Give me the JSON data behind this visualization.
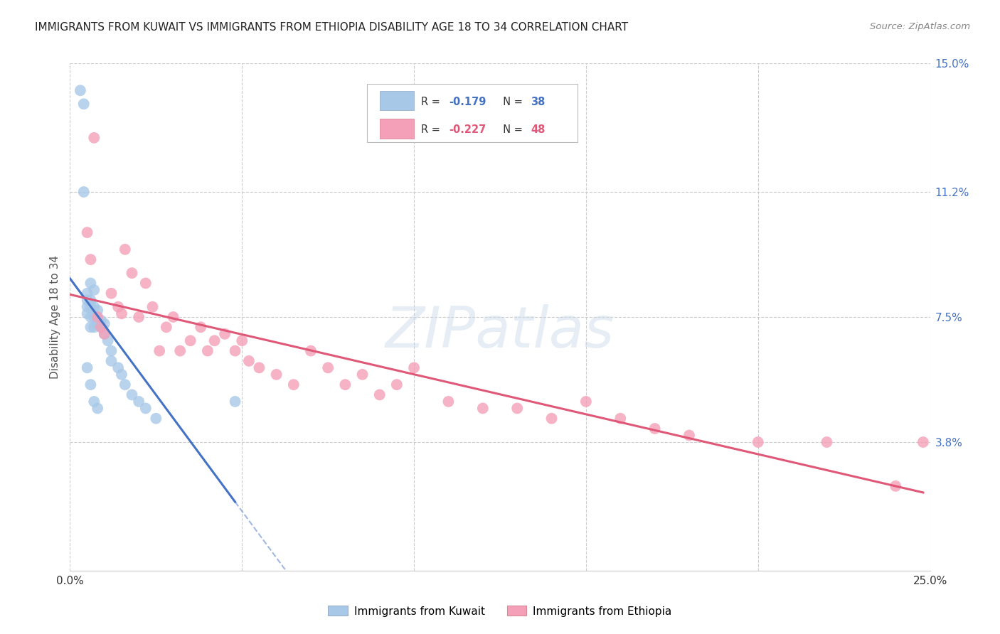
{
  "title": "IMMIGRANTS FROM KUWAIT VS IMMIGRANTS FROM ETHIOPIA DISABILITY AGE 18 TO 34 CORRELATION CHART",
  "source": "Source: ZipAtlas.com",
  "ylabel": "Disability Age 18 to 34",
  "xmin": 0.0,
  "xmax": 0.25,
  "ymin": 0.0,
  "ymax": 0.15,
  "yticks": [
    0.0,
    0.038,
    0.075,
    0.112,
    0.15
  ],
  "ytick_labels": [
    "",
    "3.8%",
    "7.5%",
    "11.2%",
    "15.0%"
  ],
  "xticks": [
    0.0,
    0.05,
    0.1,
    0.15,
    0.2,
    0.25
  ],
  "xtick_labels": [
    "0.0%",
    "",
    "",
    "",
    "",
    "25.0%"
  ],
  "legend_label1": "Immigrants from Kuwait",
  "legend_label2": "Immigrants from Ethiopia",
  "color_kuwait": "#a8c8e8",
  "color_ethiopia": "#f4a0b8",
  "color_line_kuwait": "#4472c4",
  "color_line_ethiopia": "#e05878",
  "watermark": "ZIPatlas",
  "kuwait_x": [
    0.003,
    0.004,
    0.004,
    0.005,
    0.005,
    0.005,
    0.005,
    0.006,
    0.006,
    0.006,
    0.006,
    0.006,
    0.007,
    0.007,
    0.007,
    0.007,
    0.008,
    0.008,
    0.008,
    0.009,
    0.009,
    0.01,
    0.01,
    0.011,
    0.012,
    0.012,
    0.014,
    0.015,
    0.016,
    0.018,
    0.02,
    0.022,
    0.025,
    0.048,
    0.005,
    0.006,
    0.007,
    0.008
  ],
  "kuwait_y": [
    0.142,
    0.138,
    0.112,
    0.082,
    0.08,
    0.078,
    0.076,
    0.085,
    0.08,
    0.078,
    0.075,
    0.072,
    0.083,
    0.078,
    0.075,
    0.072,
    0.077,
    0.075,
    0.073,
    0.074,
    0.072,
    0.073,
    0.07,
    0.068,
    0.065,
    0.062,
    0.06,
    0.058,
    0.055,
    0.052,
    0.05,
    0.048,
    0.045,
    0.05,
    0.06,
    0.055,
    0.05,
    0.048
  ],
  "ethiopia_x": [
    0.005,
    0.006,
    0.007,
    0.008,
    0.009,
    0.01,
    0.012,
    0.014,
    0.015,
    0.016,
    0.018,
    0.02,
    0.022,
    0.024,
    0.026,
    0.028,
    0.03,
    0.032,
    0.035,
    0.038,
    0.04,
    0.042,
    0.045,
    0.048,
    0.05,
    0.052,
    0.055,
    0.06,
    0.065,
    0.07,
    0.075,
    0.08,
    0.085,
    0.09,
    0.095,
    0.1,
    0.11,
    0.12,
    0.13,
    0.14,
    0.15,
    0.16,
    0.17,
    0.18,
    0.2,
    0.22,
    0.24,
    0.248
  ],
  "ethiopia_y": [
    0.1,
    0.092,
    0.128,
    0.075,
    0.072,
    0.07,
    0.082,
    0.078,
    0.076,
    0.095,
    0.088,
    0.075,
    0.085,
    0.078,
    0.065,
    0.072,
    0.075,
    0.065,
    0.068,
    0.072,
    0.065,
    0.068,
    0.07,
    0.065,
    0.068,
    0.062,
    0.06,
    0.058,
    0.055,
    0.065,
    0.06,
    0.055,
    0.058,
    0.052,
    0.055,
    0.06,
    0.05,
    0.048,
    0.048,
    0.045,
    0.05,
    0.045,
    0.042,
    0.04,
    0.038,
    0.038,
    0.025,
    0.038
  ]
}
